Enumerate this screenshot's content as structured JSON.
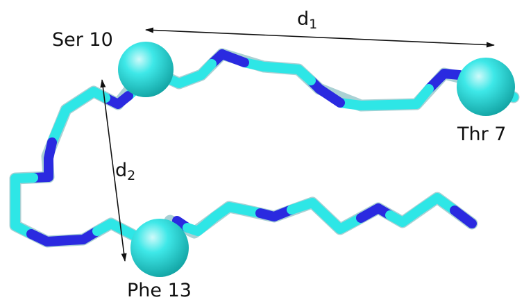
{
  "labels": {
    "ser10": "Ser 10",
    "thr7": "Thr 7",
    "phe13": "Phe 13",
    "d1_base": "d",
    "d1_sub": "1",
    "d2_base": "d",
    "d2_sub": "2"
  },
  "colors": {
    "carbon": "#2ee6e6",
    "nitrogen": "#2a2ae0",
    "sphere": "#2fd6d6",
    "arrow": "#111111",
    "text": "#111111"
  }
}
